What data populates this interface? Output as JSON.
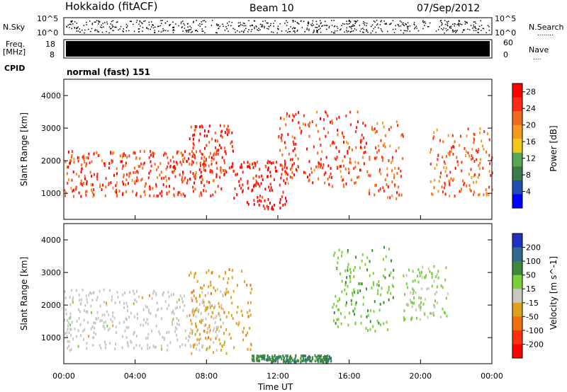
{
  "header": {
    "station": "Hokkaido (fitACF)",
    "beam": "Beam 10",
    "date": "07/Sep/2012"
  },
  "panel_labels": {
    "nsky": "N.Sky",
    "nsearch": "N.Search",
    "freq": "Freq.",
    "freq_unit": "[MHz]",
    "nave": "Nave",
    "cpid": "CPID",
    "cpid_value": "normal (fast) 151"
  },
  "noise_axis": {
    "left_ticks": [
      "10^5",
      "10^0"
    ],
    "right_ticks": [
      "10^5",
      "10^0"
    ]
  },
  "freq_axis": {
    "left_ticks": [
      "18",
      "8"
    ],
    "right_ticks": [
      "60",
      "0"
    ]
  },
  "time_axis": {
    "label": "Time UT",
    "ticks": [
      "00:00",
      "04:00",
      "08:00",
      "12:00",
      "16:00",
      "20:00",
      "00:00"
    ]
  },
  "colors": {
    "power_scale": [
      "#0000ff",
      "#1f4fb0",
      "#3c7a4a",
      "#59a858",
      "#f2c81e",
      "#f29a1e",
      "#f26a1e",
      "#ff2a1a",
      "#ff0000"
    ],
    "velocity_scale": [
      "#2030c0",
      "#2f6a8f",
      "#3a8a3a",
      "#7ad03a",
      "#c8c8c0",
      "#e0a020",
      "#f07010",
      "#ff3010",
      "#ff0000"
    ],
    "noise_dots": "#000000",
    "freq_band": "#000000"
  },
  "chart_data": [
    {
      "type": "heatmap",
      "name": "power",
      "ylabel": "Slant Range [km]",
      "y_ticks": [
        1000,
        2000,
        3000,
        4000
      ],
      "ylim": [
        200,
        4500
      ],
      "xlim_hours": [
        0,
        24
      ],
      "colorbar": {
        "label": "Power [dB]",
        "ticks": [
          4,
          8,
          12,
          16,
          20,
          24,
          28
        ],
        "range": [
          0,
          30
        ]
      },
      "features": [
        {
          "desc": "broad band",
          "start_h": 0,
          "end_h": 8.8,
          "range_km": [
            900,
            2300
          ],
          "power_db": 24
        },
        {
          "desc": "rising arc",
          "start_h": 7,
          "end_h": 9.5,
          "range_km": [
            1500,
            3100
          ],
          "power_db": 26
        },
        {
          "desc": "descending arc",
          "start_h": 9.5,
          "end_h": 12.5,
          "range_km": [
            500,
            2000
          ],
          "power_db": 28
        },
        {
          "desc": "arc to 16h",
          "start_h": 12,
          "end_h": 17,
          "range_km": [
            1200,
            3500
          ],
          "power_db": 24
        },
        {
          "desc": "descending arc",
          "start_h": 17,
          "end_h": 19,
          "range_km": [
            800,
            3200
          ],
          "power_db": 22
        },
        {
          "desc": "late band",
          "start_h": 20.5,
          "end_h": 24,
          "range_km": [
            900,
            3000
          ],
          "power_db": 22
        }
      ]
    },
    {
      "type": "heatmap",
      "name": "velocity",
      "ylabel": "Slant Range [km]",
      "y_ticks": [
        1000,
        2000,
        3000,
        4000
      ],
      "ylim": [
        200,
        4500
      ],
      "xlim_hours": [
        0,
        24
      ],
      "colorbar": {
        "label": "Velocity [m s^-1]",
        "ticks": [
          200,
          100,
          50,
          15,
          -15,
          -50,
          -100,
          -200
        ],
        "range": [
          -250,
          250
        ]
      },
      "features": [
        {
          "desc": "ground scatter band",
          "start_h": 0,
          "end_h": 9,
          "range_km": [
            600,
            2500
          ],
          "velocity": 0
        },
        {
          "desc": "negative arc",
          "start_h": 7,
          "end_h": 10.5,
          "range_km": [
            500,
            3100
          ],
          "velocity": -60
        },
        {
          "desc": "positive low-range",
          "start_h": 10.5,
          "end_h": 15,
          "range_km": [
            250,
            450
          ],
          "velocity": 120
        },
        {
          "desc": "positive arc",
          "start_h": 15,
          "end_h": 18.5,
          "range_km": [
            1200,
            3800
          ],
          "velocity": 70
        },
        {
          "desc": "positive arc late",
          "start_h": 19,
          "end_h": 21.5,
          "range_km": [
            1500,
            3200
          ],
          "velocity": 40
        }
      ]
    }
  ]
}
